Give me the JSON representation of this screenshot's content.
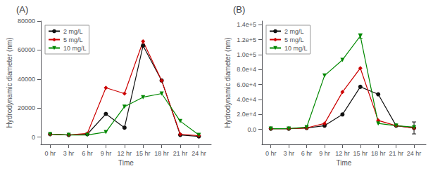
{
  "chart_data": [
    {
      "type": "line",
      "title": "(A)",
      "xlabel": "Time",
      "ylabel": "Hydrodynamic diameter (nm)",
      "x": [
        0,
        3,
        6,
        9,
        12,
        15,
        18,
        21,
        24
      ],
      "xlim": [
        -1.5,
        26
      ],
      "xticks": [
        {
          "value": 0,
          "label": "0 hr"
        },
        {
          "value": 3,
          "label": "3 hr"
        },
        {
          "value": 6,
          "label": "6 hr"
        },
        {
          "value": 9,
          "label": "9 hr"
        },
        {
          "value": 12,
          "label": "12 hr"
        },
        {
          "value": 15,
          "label": "15 hr"
        },
        {
          "value": 18,
          "label": "18 hr"
        },
        {
          "value": 21,
          "label": "21 hr"
        },
        {
          "value": 24,
          "label": "24 hr"
        }
      ],
      "ylim": [
        -5000,
        80000
      ],
      "yticks": [
        0,
        20000,
        40000,
        60000,
        80000
      ],
      "legend": "upper left",
      "grid": false,
      "series": [
        {
          "name": "2 mg/L",
          "color": "#111111",
          "marker": "circle",
          "values": [
            2000,
            1500,
            2000,
            16000,
            6500,
            63000,
            39000,
            1500,
            500
          ]
        },
        {
          "name": "5 mg/L",
          "color": "#cc0000",
          "marker": "diamond",
          "values": [
            2000,
            1500,
            2500,
            34000,
            30000,
            66000,
            39000,
            2000,
            1000
          ]
        },
        {
          "name": "10 mg/L",
          "color": "#008800",
          "marker": "triangle_down",
          "values": [
            2000,
            1500,
            1500,
            3500,
            21000,
            27500,
            30000,
            11000,
            1500
          ]
        }
      ]
    },
    {
      "type": "line",
      "title": "(B)",
      "xlabel": "Time",
      "ylabel": "Hydrodynamic diameter (nm)",
      "x": [
        0,
        3,
        6,
        9,
        12,
        15,
        18,
        21,
        24
      ],
      "xlim": [
        -1.5,
        26
      ],
      "xticks": [
        {
          "value": 0,
          "label": "0 hr"
        },
        {
          "value": 3,
          "label": "3 hr"
        },
        {
          "value": 6,
          "label": "6 hr"
        },
        {
          "value": 9,
          "label": "9 hr"
        },
        {
          "value": 12,
          "label": "12 hr"
        },
        {
          "value": 15,
          "label": "15 hr"
        },
        {
          "value": 18,
          "label": "18 hr"
        },
        {
          "value": 21,
          "label": "21 hr"
        },
        {
          "value": 24,
          "label": "24 hr"
        }
      ],
      "ylim": [
        -20000,
        145000
      ],
      "yticks": [
        {
          "value": 0,
          "label": "0.0"
        },
        {
          "value": 20000,
          "label": "2.0e+4"
        },
        {
          "value": 40000,
          "label": "4.0e+4"
        },
        {
          "value": 60000,
          "label": "6.0e+4"
        },
        {
          "value": 80000,
          "label": "8.0e+4"
        },
        {
          "value": 100000,
          "label": "1.0e+5"
        },
        {
          "value": 120000,
          "label": "1.2e+5"
        },
        {
          "value": 140000,
          "label": "1.4e+5"
        }
      ],
      "legend": "upper left",
      "grid": false,
      "series": [
        {
          "name": "2 mg/L",
          "color": "#111111",
          "marker": "circle",
          "values": [
            1000,
            1000,
            2000,
            5000,
            20000,
            57000,
            47000,
            5000,
            2000
          ],
          "errors": [
            0,
            0,
            0,
            0,
            0,
            0,
            0,
            0,
            8000
          ]
        },
        {
          "name": "5 mg/L",
          "color": "#cc0000",
          "marker": "diamond",
          "values": [
            1000,
            1000,
            2000,
            8000,
            50000,
            82000,
            12000,
            5000,
            2000
          ],
          "errors": [
            0,
            0,
            0,
            0,
            0,
            0,
            0,
            0,
            0
          ]
        },
        {
          "name": "10 mg/L",
          "color": "#008800",
          "marker": "triangle_down",
          "values": [
            1000,
            1000,
            3000,
            72000,
            93000,
            125000,
            8000,
            5000,
            3000
          ],
          "errors": [
            0,
            0,
            0,
            0,
            0,
            3000,
            0,
            0,
            0
          ]
        }
      ]
    }
  ]
}
